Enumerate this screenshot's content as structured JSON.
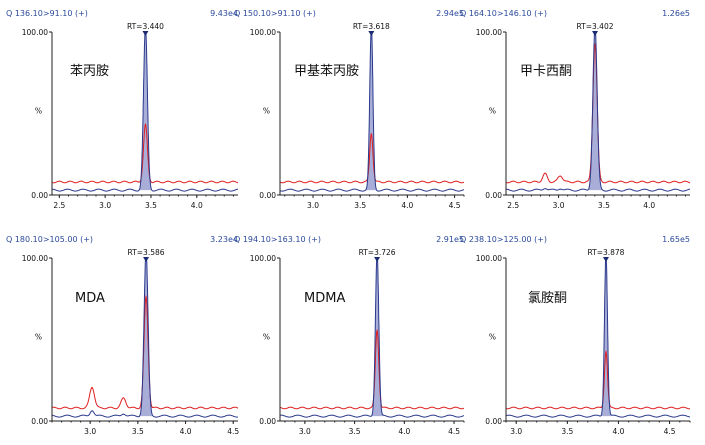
{
  "chart_data": [
    {
      "type": "line",
      "compound": "苯丙胺",
      "transition": "Q 136.10>91.10 (+)",
      "intensity": "9.43e4",
      "rt_label": "RT=3.440",
      "rt": 3.44,
      "xlim": [
        2.42,
        4.45
      ],
      "x_ticks": [
        "2.5",
        "3.0",
        "3.5",
        "4.0"
      ],
      "y_ticks": [
        "100.00",
        "%",
        "0.00"
      ],
      "ylim": [
        0,
        100
      ],
      "series": [
        {
          "color": "#2b3a8c",
          "peak_height": 100,
          "baseline": 3,
          "width": 0.05
        },
        {
          "color": "#e02020",
          "peak_height": 35,
          "baseline": 8,
          "width": 0.05
        }
      ],
      "noise": []
    },
    {
      "type": "line",
      "compound": "甲基苯丙胺",
      "transition": "Q 150.10>91.10 (+)",
      "intensity": "2.94e5",
      "rt_label": "RT=3.618",
      "rt": 3.618,
      "xlim": [
        2.65,
        4.6
      ],
      "x_ticks": [
        "3.0",
        "3.5",
        "4.0",
        "4.5"
      ],
      "y_ticks": [
        "100.00",
        "%",
        "0.00"
      ],
      "ylim": [
        0,
        100
      ],
      "series": [
        {
          "color": "#2b3a8c",
          "peak_height": 100,
          "baseline": 3,
          "width": 0.04
        },
        {
          "color": "#e02020",
          "peak_height": 30,
          "baseline": 8,
          "width": 0.04
        }
      ],
      "noise": []
    },
    {
      "type": "line",
      "compound": "甲卡西酮",
      "transition": "Q 164.10>146.10 (+)",
      "intensity": "1.26e5",
      "rt_label": "RT=3.402",
      "rt": 3.402,
      "xlim": [
        2.42,
        4.45
      ],
      "x_ticks": [
        "2.5",
        "3.0",
        "3.5",
        "4.0"
      ],
      "y_ticks": [
        "100.00",
        "%",
        "0.00"
      ],
      "ylim": [
        0,
        100
      ],
      "series": [
        {
          "color": "#2b3a8c",
          "peak_height": 100,
          "baseline": 3,
          "width": 0.055
        },
        {
          "color": "#e02020",
          "peak_height": 85,
          "baseline": 8,
          "width": 0.055
        }
      ],
      "noise": [
        [
          2.85,
          5
        ],
        [
          3.02,
          4
        ]
      ]
    },
    {
      "type": "line",
      "compound": "MDA",
      "transition": "Q 180.10>105.00 (+)",
      "intensity": "3.23e4",
      "rt_label": "RT=3.586",
      "rt": 3.586,
      "xlim": [
        2.6,
        4.55
      ],
      "x_ticks": [
        "3.0",
        "3.5",
        "4.0",
        "4.5"
      ],
      "y_ticks": [
        "100.00",
        "%",
        "0.00"
      ],
      "ylim": [
        0,
        100
      ],
      "series": [
        {
          "color": "#2b3a8c",
          "peak_height": 100,
          "baseline": 3,
          "width": 0.05
        },
        {
          "color": "#e02020",
          "peak_height": 68,
          "baseline": 8,
          "width": 0.05
        }
      ],
      "noise": [
        [
          3.02,
          13
        ],
        [
          3.35,
          6
        ]
      ]
    },
    {
      "type": "line",
      "compound": "MDMA",
      "transition": "Q 194.10>163.10 (+)",
      "intensity": "2.91e5",
      "rt_label": "RT=3.726",
      "rt": 3.726,
      "xlim": [
        2.75,
        4.6
      ],
      "x_ticks": [
        "3.0",
        "3.5",
        "4.0",
        "4.5"
      ],
      "y_ticks": [
        "100.00",
        "%",
        "0.00"
      ],
      "ylim": [
        0,
        100
      ],
      "series": [
        {
          "color": "#2b3a8c",
          "peak_height": 100,
          "baseline": 3,
          "width": 0.04
        },
        {
          "color": "#e02020",
          "peak_height": 48,
          "baseline": 8,
          "width": 0.04
        }
      ],
      "noise": []
    },
    {
      "type": "line",
      "compound": "氯胺酮",
      "transition": "Q 238.10>125.00 (+)",
      "intensity": "1.65e5",
      "rt_label": "RT=3.878",
      "rt": 3.878,
      "xlim": [
        2.9,
        4.7
      ],
      "x_ticks": [
        "3.0",
        "3.5",
        "4.0",
        "4.5"
      ],
      "y_ticks": [
        "100.00",
        "%",
        "0.00"
      ],
      "ylim": [
        0,
        100
      ],
      "series": [
        {
          "color": "#2b3a8c",
          "peak_height": 100,
          "baseline": 3,
          "width": 0.035
        },
        {
          "color": "#e02020",
          "peak_height": 35,
          "baseline": 8,
          "width": 0.035
        }
      ],
      "noise": []
    }
  ]
}
